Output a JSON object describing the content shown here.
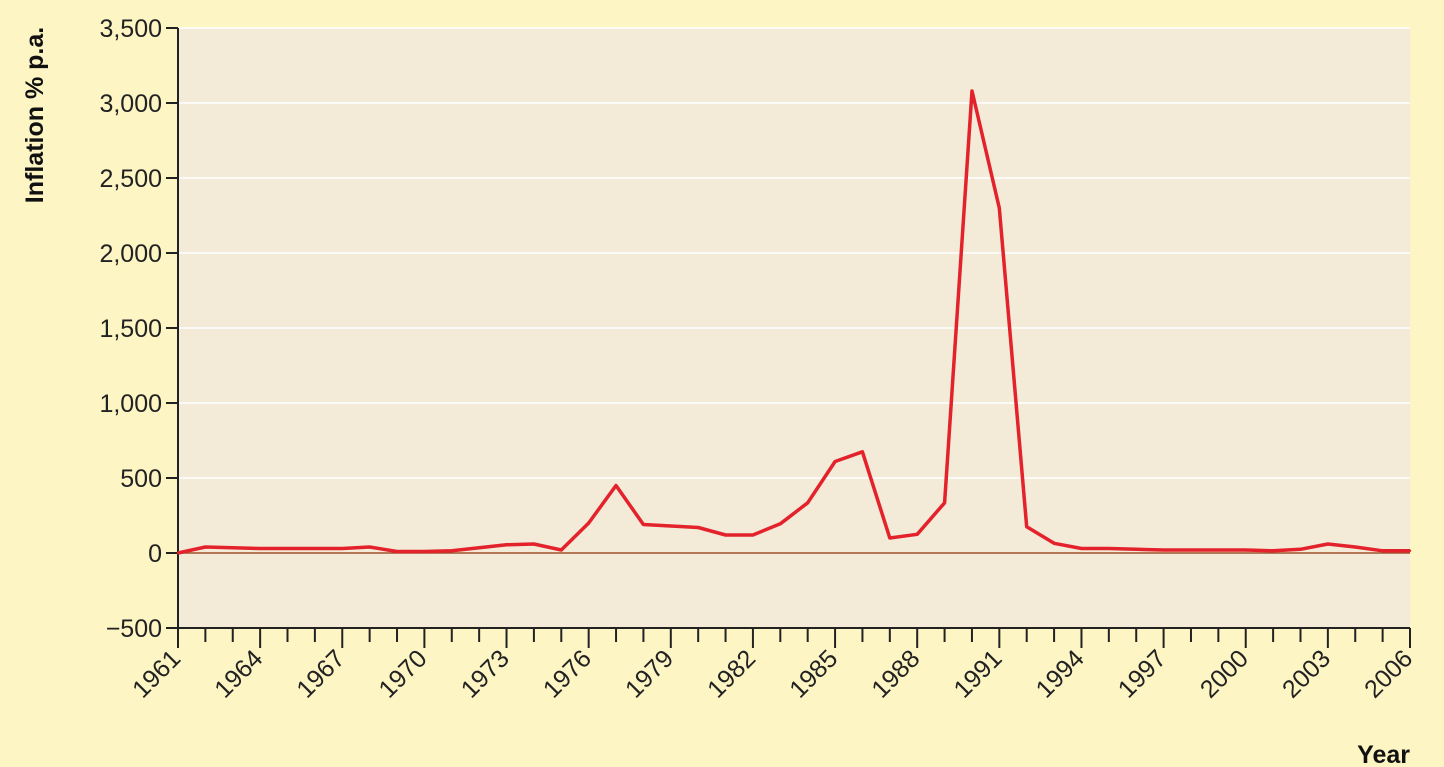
{
  "chart_data": {
    "type": "line",
    "title": "",
    "xlabel": "Year",
    "ylabel": "Inflation % p.a.",
    "ylim": [
      -500,
      3500
    ],
    "xlim": [
      1961,
      2006
    ],
    "y_ticks": [
      "-500",
      "0",
      "500",
      "1,000",
      "1,500",
      "2,000",
      "2,500",
      "3,000",
      "3,500"
    ],
    "y_tick_values": [
      -500,
      0,
      500,
      1000,
      1500,
      2000,
      2500,
      3000,
      3500
    ],
    "x_tick_labels": [
      "1961",
      "1964",
      "1967",
      "1970",
      "1973",
      "1976",
      "1979",
      "1982",
      "1985",
      "1988",
      "1991",
      "1994",
      "1997",
      "2000",
      "2003",
      "2006"
    ],
    "grid": true,
    "colors": {
      "background": "#fdf5c4",
      "plot_area": "#f3ead8",
      "line": "#e3222b",
      "zero_line": "#a0522d",
      "gridline": "#ffffff"
    },
    "series": [
      {
        "x": [
          1961,
          1962,
          1963,
          1964,
          1965,
          1966,
          1967,
          1968,
          1969,
          1970,
          1971,
          1972,
          1973,
          1974,
          1975,
          1976,
          1977,
          1978,
          1979,
          1980,
          1981,
          1982,
          1983,
          1984,
          1985,
          1986,
          1987,
          1988,
          1989,
          1990,
          1991,
          1992,
          1993,
          1994,
          1995,
          1996,
          1997,
          1998,
          1999,
          2000,
          2001,
          2002,
          2003,
          2004,
          2005,
          2006
        ],
        "values": [
          0,
          40,
          35,
          30,
          30,
          30,
          30,
          40,
          10,
          10,
          15,
          35,
          55,
          60,
          20,
          200,
          450,
          190,
          180,
          170,
          120,
          120,
          195,
          335,
          610,
          675,
          100,
          125,
          335,
          3080,
          2300,
          175,
          65,
          30,
          30,
          25,
          20,
          20,
          20,
          20,
          15,
          25,
          60,
          40,
          15,
          15
        ]
      }
    ]
  }
}
